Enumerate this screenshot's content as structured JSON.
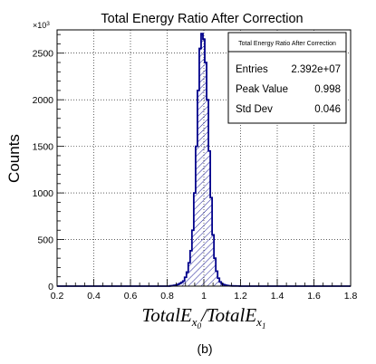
{
  "chart_data": {
    "type": "histogram",
    "title": "Total Energy Ratio After Correction",
    "xlabel": {
      "base1": "TotalE",
      "sub1": "x",
      "subsub1": "0",
      "sep": "/",
      "base2": "TotalE",
      "sub2": "x",
      "subsub2": "1"
    },
    "ylabel": "Counts",
    "y_multiplier": {
      "base": "×10",
      "exponent": "3"
    },
    "xlim": [
      0.2,
      1.8
    ],
    "ylim": [
      0,
      2750
    ],
    "x_ticks": [
      0.2,
      0.4,
      0.6,
      0.8,
      1.0,
      1.2,
      1.4,
      1.6,
      1.8
    ],
    "x_tick_labels": [
      "0.2",
      "0.4",
      "0.6",
      "0.8",
      "1",
      "1.2",
      "1.4",
      "1.6",
      "1.8"
    ],
    "y_ticks": [
      0,
      500,
      1000,
      1500,
      2000,
      2500
    ],
    "y_tick_labels": [
      "0",
      "500",
      "1000",
      "1500",
      "2000",
      "2500"
    ],
    "grid": true,
    "line_color": "#00008b",
    "fill_pattern": "diagonal-hatch",
    "bin_width": 0.01,
    "bins_x": [
      0.82,
      0.83,
      0.84,
      0.85,
      0.86,
      0.87,
      0.88,
      0.89,
      0.9,
      0.91,
      0.92,
      0.93,
      0.94,
      0.95,
      0.96,
      0.97,
      0.98,
      0.99,
      1.0,
      1.01,
      1.02,
      1.03,
      1.04,
      1.05,
      1.06,
      1.07,
      1.08,
      1.09,
      1.1,
      1.11,
      1.12,
      1.13,
      1.14,
      1.15,
      1.16,
      1.17,
      1.18,
      1.19
    ],
    "bins_y": [
      3,
      5,
      8,
      12,
      18,
      28,
      40,
      55,
      95,
      150,
      250,
      380,
      600,
      1000,
      1500,
      2100,
      2550,
      2710,
      2650,
      2400,
      2000,
      1450,
      950,
      550,
      300,
      160,
      85,
      45,
      25,
      15,
      10,
      6,
      4,
      3,
      2,
      2,
      1,
      1
    ]
  },
  "stats_box": {
    "title": "Total Energy Ratio After Correction",
    "rows": [
      {
        "label": "Entries",
        "value": "2.392e+07"
      },
      {
        "label": "Peak Value",
        "value": "0.998"
      },
      {
        "label": "Std Dev",
        "value": "0.046"
      }
    ]
  },
  "caption": "(b)"
}
